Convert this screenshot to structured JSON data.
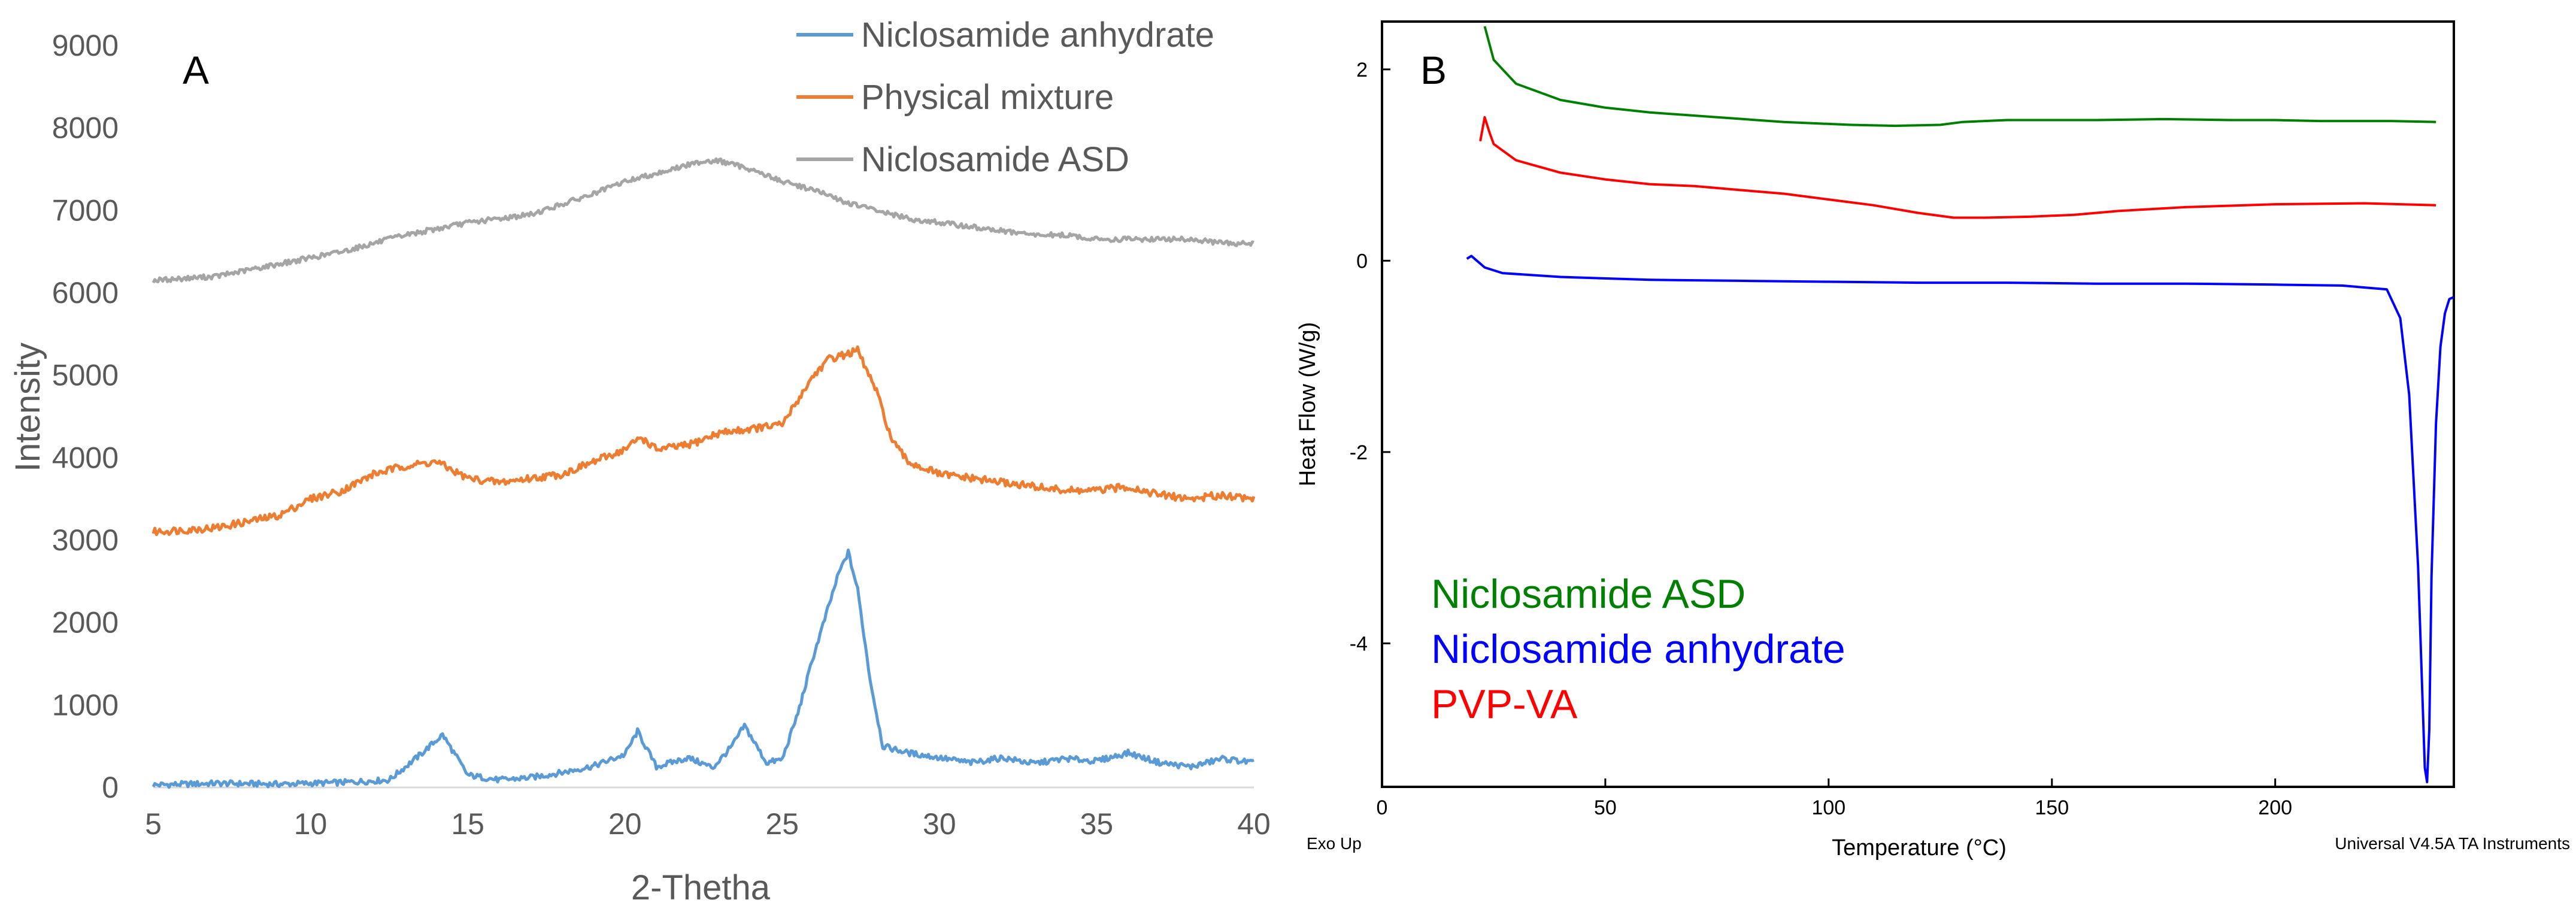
{
  "chart_data": [
    {
      "type": "line",
      "panel_label": "A",
      "xlabel": "2-Thetha",
      "ylabel": "Intensity",
      "xlim": [
        5,
        40
      ],
      "ylim": [
        0,
        9000
      ],
      "x_ticks": [
        5,
        10,
        15,
        20,
        25,
        30,
        35,
        40
      ],
      "y_ticks": [
        0,
        1000,
        2000,
        3000,
        4000,
        5000,
        6000,
        7000,
        8000,
        9000
      ],
      "legend": [
        "Niclosamide anhydrate",
        "Physical mixture",
        "Niclosamide ASD"
      ],
      "legend_position": "top-right",
      "series": [
        {
          "name": "Niclosamide anhydrate",
          "color": "#5b9bd5",
          "x": [
            5,
            7,
            9,
            11,
            12.5,
            13.5,
            14.2,
            15,
            16,
            17,
            18,
            19,
            20,
            20.4,
            21,
            22,
            22.8,
            23.4,
            23.8,
            24.5,
            25,
            25.5,
            26,
            26.4,
            26.8,
            27.1,
            27.4,
            27.8,
            28.2,
            29,
            30,
            31,
            32,
            33,
            34,
            35,
            36,
            37,
            38,
            39,
            40
          ],
          "values": [
            30,
            50,
            40,
            60,
            90,
            400,
            640,
            150,
            90,
            120,
            180,
            260,
            400,
            680,
            250,
            360,
            240,
            500,
            750,
            300,
            340,
            900,
            1600,
            2100,
            2600,
            2850,
            2400,
            1300,
            500,
            420,
            360,
            300,
            360,
            290,
            350,
            320,
            420,
            300,
            250,
            350,
            300
          ]
        },
        {
          "name": "Physical mixture",
          "color": "#ed7d31",
          "x": [
            5,
            7,
            9,
            10,
            11,
            12,
            13,
            14,
            15,
            16,
            17,
            18,
            19,
            20,
            20.5,
            21,
            22,
            23,
            24,
            25,
            25.5,
            26,
            26.5,
            27,
            27.4,
            28,
            28.5,
            29,
            30,
            31,
            32,
            33,
            34,
            35,
            36,
            37,
            38,
            39,
            40
          ],
          "values": [
            3100,
            3150,
            3300,
            3500,
            3600,
            3800,
            3900,
            3950,
            3750,
            3700,
            3750,
            3800,
            3950,
            4100,
            4250,
            4100,
            4150,
            4300,
            4350,
            4400,
            4700,
            5000,
            5200,
            5250,
            5300,
            4800,
            4200,
            3950,
            3800,
            3750,
            3700,
            3650,
            3600,
            3600,
            3650,
            3550,
            3500,
            3550,
            3500
          ]
        },
        {
          "name": "Niclosamide ASD",
          "color": "#a5a5a5",
          "x": [
            5,
            7,
            9,
            11,
            13,
            15,
            17,
            19,
            20,
            21,
            22,
            22.5,
            23,
            24,
            25,
            26,
            27,
            28,
            29,
            30,
            31,
            32,
            33,
            34,
            35,
            36,
            37,
            38,
            39,
            40
          ],
          "values": [
            6150,
            6200,
            6350,
            6500,
            6700,
            6850,
            6950,
            7200,
            7350,
            7450,
            7550,
            7600,
            7600,
            7500,
            7350,
            7250,
            7100,
            7000,
            6900,
            6850,
            6800,
            6750,
            6700,
            6700,
            6650,
            6650,
            6650,
            6650,
            6600,
            6600
          ]
        }
      ]
    },
    {
      "type": "line",
      "panel_label": "B",
      "xlabel": "Temperature (°C)",
      "ylabel": "Heat Flow (W/g)",
      "xlim": [
        0,
        240
      ],
      "ylim": [
        -5.5,
        2.5
      ],
      "x_ticks": [
        0,
        50,
        100,
        150,
        200
      ],
      "y_ticks": [
        2,
        0,
        -2,
        -4
      ],
      "corner_left": "Exo Up",
      "corner_right": "Universal V4.5A TA Instruments",
      "legend": [
        "Niclosamide ASD",
        "Niclosamide anhydrate",
        "PVP-VA"
      ],
      "series": [
        {
          "name": "Niclosamide ASD",
          "color": "#008000",
          "x": [
            23,
            25,
            30,
            40,
            50,
            60,
            75,
            90,
            105,
            115,
            125,
            130,
            140,
            150,
            160,
            175,
            190,
            200,
            210,
            220,
            226,
            236
          ],
          "values": [
            2.45,
            2.1,
            1.85,
            1.68,
            1.6,
            1.55,
            1.5,
            1.45,
            1.42,
            1.41,
            1.42,
            1.45,
            1.47,
            1.47,
            1.47,
            1.48,
            1.47,
            1.47,
            1.46,
            1.46,
            1.46,
            1.45
          ]
        },
        {
          "name": "Niclosamide anhydrate",
          "color": "#0000ff",
          "x": [
            19,
            20,
            21,
            23,
            27,
            40,
            60,
            80,
            100,
            120,
            140,
            160,
            180,
            200,
            215,
            225,
            228,
            230,
            232,
            233.5,
            234,
            234.5,
            235,
            236,
            237,
            238,
            239,
            240
          ],
          "values": [
            0.02,
            0.05,
            0.01,
            -0.07,
            -0.13,
            -0.17,
            -0.2,
            -0.21,
            -0.22,
            -0.23,
            -0.23,
            -0.24,
            -0.24,
            -0.25,
            -0.26,
            -0.3,
            -0.6,
            -1.4,
            -3.2,
            -5.3,
            -5.45,
            -4.9,
            -3.3,
            -1.7,
            -0.9,
            -0.55,
            -0.4,
            -0.38
          ]
        },
        {
          "name": "PVP-VA",
          "color": "#ff0000",
          "x": [
            22,
            23,
            24,
            25,
            30,
            40,
            50,
            60,
            70,
            80,
            90,
            100,
            110,
            120,
            128,
            135,
            145,
            155,
            165,
            180,
            200,
            220,
            236
          ],
          "values": [
            1.25,
            1.5,
            1.35,
            1.22,
            1.05,
            0.92,
            0.85,
            0.8,
            0.78,
            0.74,
            0.7,
            0.64,
            0.58,
            0.5,
            0.45,
            0.45,
            0.46,
            0.48,
            0.52,
            0.56,
            0.59,
            0.6,
            0.58
          ]
        }
      ]
    }
  ]
}
